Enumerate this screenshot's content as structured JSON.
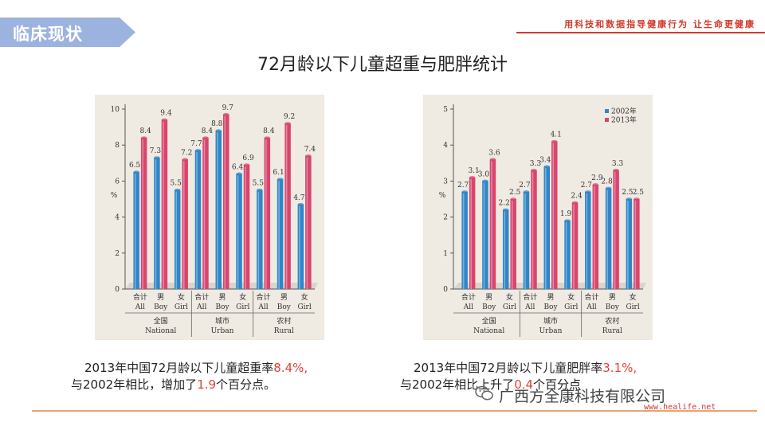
{
  "header": {
    "section_label": "临床现状",
    "slogan": "用科技和数据指导健康行为  让生命更健康"
  },
  "page_title": "72月龄以下儿童超重与肥胖统计",
  "colors": {
    "series_a": "#2f86c8",
    "series_b": "#d8456e",
    "accent": "#d23a2a",
    "banner": "#9db3df"
  },
  "chart_data": [
    {
      "type": "bar",
      "title": "",
      "ylabel": "%",
      "ylim": [
        0,
        10
      ],
      "yticks": [
        0,
        2,
        4,
        6,
        8,
        10
      ],
      "categories": [
        {
          "cn": "合计",
          "en": "All"
        },
        {
          "cn": "男",
          "en": "Boy"
        },
        {
          "cn": "女",
          "en": "Girl"
        },
        {
          "cn": "合计",
          "en": "All"
        },
        {
          "cn": "男",
          "en": "Boy"
        },
        {
          "cn": "女",
          "en": "Girl"
        },
        {
          "cn": "合计",
          "en": "All"
        },
        {
          "cn": "男",
          "en": "Boy"
        },
        {
          "cn": "女",
          "en": "Girl"
        }
      ],
      "groups": [
        {
          "cn": "全国",
          "en": "National"
        },
        {
          "cn": "城市",
          "en": "Urban"
        },
        {
          "cn": "农村",
          "en": "Rural"
        }
      ],
      "series": [
        {
          "name": "2002年",
          "values": [
            6.5,
            7.3,
            5.5,
            7.7,
            8.8,
            6.4,
            5.5,
            6.1,
            4.7
          ]
        },
        {
          "name": "2013年",
          "values": [
            8.4,
            9.4,
            7.2,
            8.4,
            9.7,
            6.9,
            8.4,
            9.2,
            7.4
          ]
        }
      ],
      "legend": []
    },
    {
      "type": "bar",
      "title": "",
      "ylabel": "%",
      "ylim": [
        0,
        5
      ],
      "yticks": [
        0,
        1,
        2,
        3,
        4,
        5
      ],
      "categories": [
        {
          "cn": "合计",
          "en": "All"
        },
        {
          "cn": "男",
          "en": "Boy"
        },
        {
          "cn": "女",
          "en": "Girl"
        },
        {
          "cn": "合计",
          "en": "All"
        },
        {
          "cn": "男",
          "en": "Boy"
        },
        {
          "cn": "女",
          "en": "Girl"
        },
        {
          "cn": "合计",
          "en": "All"
        },
        {
          "cn": "男",
          "en": "Boy"
        },
        {
          "cn": "女",
          "en": "Girl"
        }
      ],
      "groups": [
        {
          "cn": "全国",
          "en": "National"
        },
        {
          "cn": "城市",
          "en": "Urban"
        },
        {
          "cn": "农村",
          "en": "Rural"
        }
      ],
      "series": [
        {
          "name": "2002年",
          "values": [
            2.7,
            3.0,
            2.2,
            2.7,
            3.4,
            1.9,
            2.7,
            2.8,
            2.5
          ]
        },
        {
          "name": "2013年",
          "values": [
            3.1,
            3.6,
            2.5,
            3.3,
            4.1,
            2.4,
            2.9,
            3.3,
            2.5
          ]
        }
      ],
      "legend": [
        "2002年",
        "2013年"
      ]
    }
  ],
  "captions": {
    "left": {
      "line1_prefix": "2013年中国72月龄以下儿童超重率",
      "line1_value": "8.4%,",
      "line2_prefix": "与2002年相比，增加了",
      "line2_value": "1.9",
      "line2_suffix": "个百分点。"
    },
    "right": {
      "line1_prefix": "2013年中国72月龄以下儿童肥胖率",
      "line1_value": "3.1%,",
      "line2_prefix": "与2002年相比上升了",
      "line2_value": "0.4",
      "line2_suffix": "个百分点"
    }
  },
  "footer": {
    "company": "广西方全康科技有限公司",
    "url": "www.healife.net"
  }
}
